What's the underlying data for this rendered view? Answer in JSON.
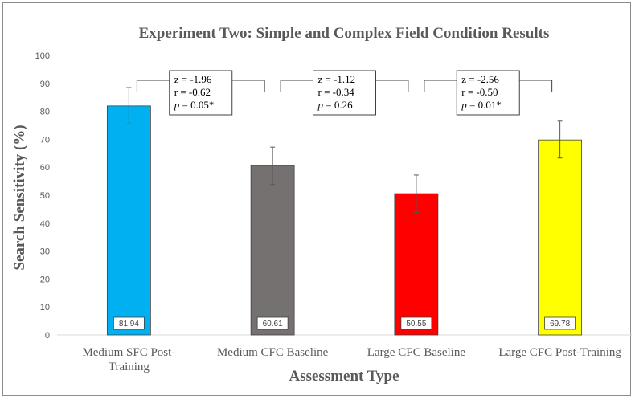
{
  "chart_data": {
    "type": "bar",
    "title": "Experiment Two: Simple and Complex Field Condition Results",
    "xlabel": "Assessment Type",
    "ylabel": "Search Sensitivity (%)",
    "ylim": [
      0,
      100
    ],
    "yticks": [
      0,
      10,
      20,
      30,
      40,
      50,
      60,
      70,
      80,
      90,
      100
    ],
    "grid": false,
    "categories": [
      [
        "Medium SFC Post-",
        "Training"
      ],
      [
        "Medium CFC Baseline"
      ],
      [
        "Large CFC Baseline"
      ],
      [
        "Large CFC Post-Training"
      ]
    ],
    "values": [
      81.94,
      60.61,
      50.55,
      69.78
    ],
    "value_labels": [
      "81.94",
      "60.61",
      "50.55",
      "69.78"
    ],
    "error_bars": [
      {
        "low": 75.5,
        "high": 88.5
      },
      {
        "low": 53.8,
        "high": 67.2
      },
      {
        "low": 43.8,
        "high": 57.2
      },
      {
        "low": 63.3,
        "high": 76.5
      }
    ],
    "bar_colors": [
      "#00b0f0",
      "#767171",
      "#ff0000",
      "#ffff00"
    ],
    "annotations": [
      {
        "from": 0,
        "to": 1,
        "z": "z = -1.96",
        "r": "r = -0.62",
        "p_label": "p",
        "p_value": " = 0.05*"
      },
      {
        "from": 1,
        "to": 2,
        "z": "z = -1.12",
        "r": "r = -0.34",
        "p_label": "p",
        "p_value": " = 0.26"
      },
      {
        "from": 2,
        "to": 3,
        "z": "z = -2.56",
        "r": "r = -0.50",
        "p_label": "p",
        "p_value": " = 0.01*"
      }
    ]
  }
}
